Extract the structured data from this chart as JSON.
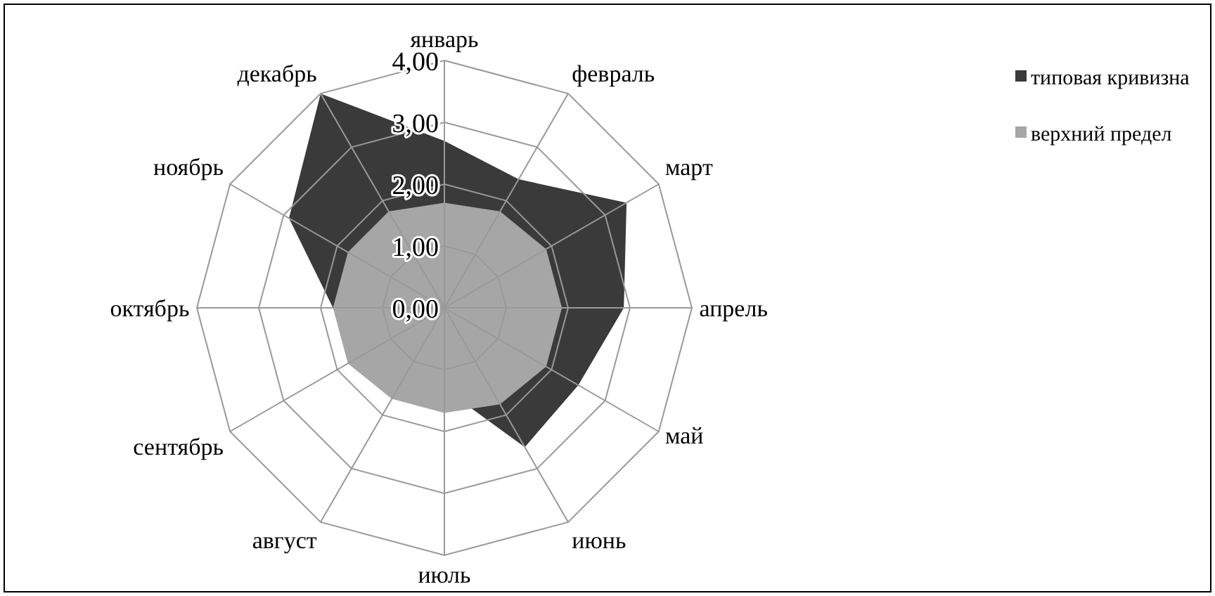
{
  "chart_data": {
    "type": "radar",
    "categories": [
      "январь",
      "февраль",
      "март",
      "апрель",
      "май",
      "июнь",
      "июль",
      "август",
      "сентябрь",
      "октябрь",
      "ноябрь",
      "декабрь"
    ],
    "series": [
      {
        "name": "типовая кривизна",
        "color": "#3a3a3a",
        "values": [
          2.7,
          2.4,
          3.4,
          2.9,
          2.5,
          2.6,
          null,
          null,
          null,
          1.8,
          2.9,
          4.0
        ]
      },
      {
        "name": "верхний предел",
        "color": "#a6a6a6",
        "values": [
          1.7,
          1.8,
          1.9,
          1.9,
          1.9,
          1.8,
          1.7,
          1.7,
          1.8,
          1.8,
          1.8,
          1.8
        ]
      }
    ],
    "ylim": [
      0,
      4
    ],
    "yticks": [
      {
        "value": 0,
        "label": "0,00"
      },
      {
        "value": 1,
        "label": "1,00"
      },
      {
        "value": 2,
        "label": "2,00"
      },
      {
        "value": 3,
        "label": "3,00"
      },
      {
        "value": 4,
        "label": "4,00"
      }
    ],
    "grid": true,
    "legend": "right"
  }
}
